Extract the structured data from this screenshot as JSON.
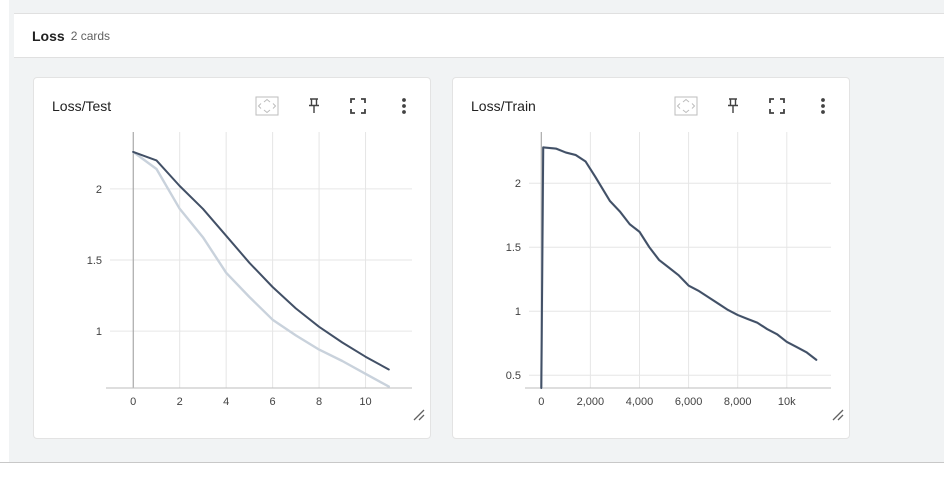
{
  "group": {
    "title": "Loss",
    "count": "2 cards"
  },
  "cards": [
    {
      "title": "Loss/Test",
      "chart_data": {
        "type": "line",
        "x_ticks": [
          "0",
          "2",
          "4",
          "6",
          "8",
          "10"
        ],
        "y_ticks": [
          "1",
          "1.5",
          "2"
        ],
        "xlim": [
          -1,
          12
        ],
        "ylim": [
          0.6,
          2.4
        ],
        "series": [
          {
            "color": "#425066",
            "x": [
              0,
              1,
              2,
              3,
              4,
              5,
              6,
              7,
              8,
              9,
              10,
              11
            ],
            "y": [
              2.26,
              2.2,
              2.02,
              1.86,
              1.67,
              1.48,
              1.31,
              1.16,
              1.03,
              0.92,
              0.82,
              0.73
            ]
          },
          {
            "color": "#c9d2dc",
            "x": [
              0,
              1,
              2,
              3,
              4,
              5,
              6,
              7,
              8,
              9,
              10,
              11
            ],
            "y": [
              2.26,
              2.14,
              1.86,
              1.66,
              1.41,
              1.24,
              1.08,
              0.97,
              0.87,
              0.79,
              0.7,
              0.61
            ]
          }
        ]
      }
    },
    {
      "title": "Loss/Train",
      "chart_data": {
        "type": "line",
        "x_ticks": [
          "0",
          "2,000",
          "4,000",
          "6,000",
          "8,000",
          "10k"
        ],
        "y_ticks": [
          "0.5",
          "1",
          "1.5",
          "2"
        ],
        "xlim": [
          -500,
          11800
        ],
        "ylim": [
          0.4,
          2.4
        ],
        "series": [
          {
            "color": "#425066",
            "x": [
              0,
              80,
              600,
              1000,
              1400,
              1800,
              2200,
              2800,
              3200,
              3600,
              4000,
              4400,
              4800,
              5200,
              5600,
              6000,
              6400,
              6800,
              7200,
              7600,
              8000,
              8400,
              8800,
              9200,
              9600,
              10000,
              10400,
              10800,
              11200
            ],
            "y": [
              0.4,
              2.28,
              2.27,
              2.24,
              2.22,
              2.17,
              2.05,
              1.86,
              1.78,
              1.68,
              1.62,
              1.5,
              1.4,
              1.34,
              1.28,
              1.2,
              1.16,
              1.11,
              1.06,
              1.01,
              0.97,
              0.94,
              0.91,
              0.86,
              0.82,
              0.76,
              0.72,
              0.68,
              0.62
            ]
          },
          {
            "color": "#c9d2dc",
            "x": [
              0,
              80,
              600,
              1000,
              1400,
              1800,
              2200,
              2800,
              3200,
              3600,
              4000,
              4400,
              4800,
              5200,
              5600,
              6000,
              6400,
              6800,
              7200,
              7600,
              8000,
              8400,
              8800,
              9200,
              9600,
              10000,
              10400,
              10800,
              11200
            ],
            "y": [
              0.4,
              2.28,
              2.27,
              2.24,
              2.22,
              2.17,
              2.05,
              1.86,
              1.78,
              1.68,
              1.62,
              1.5,
              1.4,
              1.34,
              1.28,
              1.2,
              1.16,
              1.11,
              1.06,
              1.01,
              0.97,
              0.94,
              0.91,
              0.86,
              0.82,
              0.76,
              0.72,
              0.68,
              0.62
            ]
          }
        ]
      }
    }
  ],
  "icons": [
    "fit-domain-icon",
    "pin-icon",
    "fullscreen-icon",
    "more-vert-icon",
    "axis-resize-icon"
  ]
}
